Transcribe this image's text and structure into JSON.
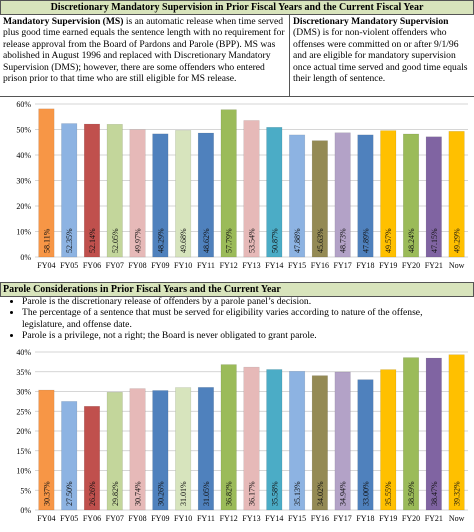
{
  "section1": {
    "title": "Discretionary Mandatory Supervision in Prior Fiscal Years and the Current Fiscal Year",
    "left_term": "Mandatory Supervision (MS)",
    "left_text": " is an automatic release when time served plus good time earned equals the sentence length with no requirement for release approval from the Board of Pardons and Parole (BPP).  MS was abolished in August 1996 and replaced with Discretionary Mandatory Supervision (DMS); however, there are some offenders who entered prison prior to that time who are still  eligible for MS release.",
    "right_term": "Discretionary Mandatory Supervision",
    "right_text": " (DMS) is for non-violent offenders who offenses were committed on or after 9/1/96 and are eligible for mandatory supervision once actual time served and good time equals their length of sentence."
  },
  "section2": {
    "title": "Parole Considerations in Prior Fiscal Years and the Current Year",
    "bullets": [
      "Parole is the discretionary release of offenders by a parole panel’s decision.",
      "The percentage of a sentence that must be served for eligibility varies according to nature of the offense, legislature, and offense date.",
      "Parole is a privilege, not a right; the Board is never obligated to grant parole."
    ]
  },
  "chart_data": [
    {
      "type": "bar",
      "categories": [
        "FY04",
        "FY05",
        "FY06",
        "FY07",
        "FY08",
        "FY09",
        "FY10",
        "FY11",
        "FY12",
        "FY13",
        "FY14",
        "FY15",
        "FY16",
        "FY17",
        "FY18",
        "FY19",
        "FY20",
        "FY21",
        "Now"
      ],
      "values": [
        58.11,
        52.35,
        52.14,
        52.05,
        49.97,
        48.29,
        49.68,
        48.62,
        57.79,
        53.54,
        50.87,
        47.88,
        45.63,
        48.73,
        47.89,
        49.57,
        48.24,
        47.15,
        49.29
      ],
      "value_labels": [
        "58.11%",
        "52.35%",
        "52.14%",
        "52.05%",
        "49.97%",
        "48.29%",
        "49.68%",
        "48.62%",
        "57.79%",
        "53.54%",
        "50.87%",
        "47.88%",
        "45.63%",
        "48.73%",
        "47.89%",
        "49.57%",
        "48.24%",
        "47.15%",
        "49.29%"
      ],
      "colors": [
        "#f79646",
        "#8db3e2",
        "#c0504d",
        "#c3d69b",
        "#e6b9b8",
        "#4f81bd",
        "#d7e4bd",
        "#4f81bd",
        "#9bbb59",
        "#e6b9b8",
        "#4bacc6",
        "#8db3e2",
        "#948a54",
        "#b3a2c7",
        "#4f81bd",
        "#ffc000",
        "#9bbb59",
        "#8064a2",
        "#ffc000"
      ],
      "ylim": [
        0,
        60
      ],
      "yticks": [
        {
          "value": 0,
          "label": "0%"
        },
        {
          "value": 10,
          "label": "10%"
        },
        {
          "value": 20,
          "label": "20%"
        },
        {
          "value": 30,
          "label": "30%"
        },
        {
          "value": 40,
          "label": "40%"
        },
        {
          "value": 50,
          "label": "50%"
        },
        {
          "value": 60,
          "label": "60%"
        }
      ],
      "grid": true
    },
    {
      "type": "bar",
      "categories": [
        "FY04",
        "FY05",
        "FY06",
        "FY07",
        "FY08",
        "FY09",
        "FY10",
        "FY11",
        "FY12",
        "FY13",
        "FY14",
        "FY15",
        "FY16",
        "FY17",
        "FY18",
        "FY19",
        "FY20",
        "FY21",
        "Now"
      ],
      "values": [
        30.37,
        27.5,
        26.26,
        29.82,
        30.74,
        30.26,
        31.01,
        31.05,
        36.82,
        36.17,
        35.58,
        35.13,
        34.02,
        34.94,
        33.0,
        35.55,
        38.59,
        38.47,
        39.32
      ],
      "value_labels": [
        "30.37%",
        "27.50%",
        "26.26%",
        "29.82%",
        "30.74%",
        "30.26%",
        "31.01%",
        "31.05%",
        "36.82%",
        "36.17%",
        "35.58%",
        "35.13%",
        "34.02%",
        "34.94%",
        "33.00%",
        "35.55%",
        "38.59%",
        "38.47%",
        "39.32%"
      ],
      "colors": [
        "#f79646",
        "#8db3e2",
        "#c0504d",
        "#c3d69b",
        "#e6b9b8",
        "#4f81bd",
        "#d7e4bd",
        "#4f81bd",
        "#9bbb59",
        "#e6b9b8",
        "#4bacc6",
        "#8db3e2",
        "#948a54",
        "#b3a2c7",
        "#4f81bd",
        "#ffc000",
        "#9bbb59",
        "#8064a2",
        "#ffc000"
      ],
      "ylim": [
        0,
        40
      ],
      "yticks": [
        {
          "value": 0,
          "label": "0%"
        },
        {
          "value": 5,
          "label": "5%"
        },
        {
          "value": 10,
          "label": "10%"
        },
        {
          "value": 15,
          "label": "15%"
        },
        {
          "value": 20,
          "label": "20%"
        },
        {
          "value": 25,
          "label": "25%"
        },
        {
          "value": 30,
          "label": "30%"
        },
        {
          "value": 35,
          "label": "35%"
        },
        {
          "value": 40,
          "label": "40%"
        }
      ],
      "grid": true
    }
  ]
}
